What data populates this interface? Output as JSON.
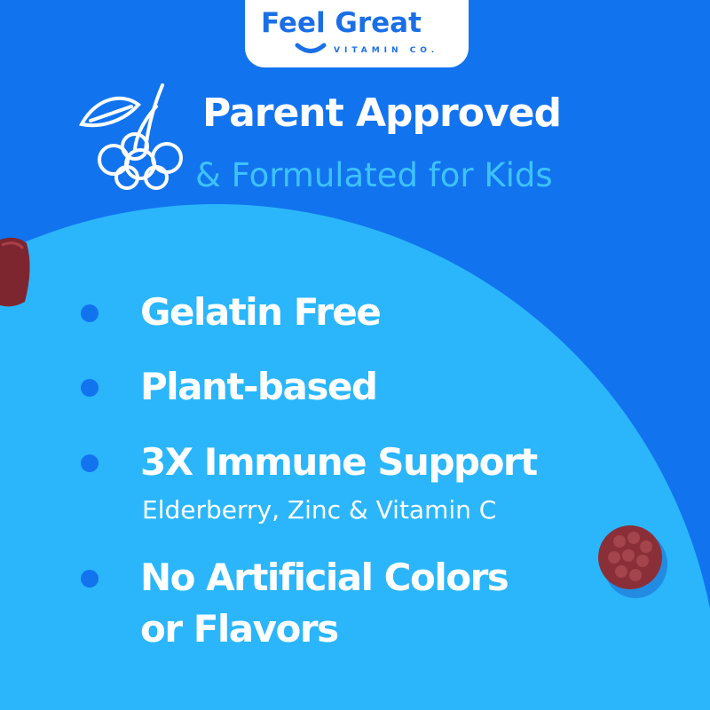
{
  "brand": {
    "name": "Feel Great",
    "tagline": "VITAMIN CO."
  },
  "header": {
    "title": "Parent Approved",
    "subtitle": "& Formulated for Kids"
  },
  "features": [
    {
      "label": "Gelatin Free"
    },
    {
      "label": "Plant-based"
    },
    {
      "label": "3X Immune Support",
      "detail": "Elderberry, Zinc & Vitamin C"
    },
    {
      "label": "No Artificial Colors",
      "label2": "or Flavors"
    }
  ],
  "colors": {
    "background": "#1273ef",
    "circle": "#2bb6fc",
    "subtitle": "#3ec2ff",
    "gummy": "#8a2a35"
  },
  "icons": {
    "header_icon": "elderberry-icon",
    "bullet": "dot"
  }
}
